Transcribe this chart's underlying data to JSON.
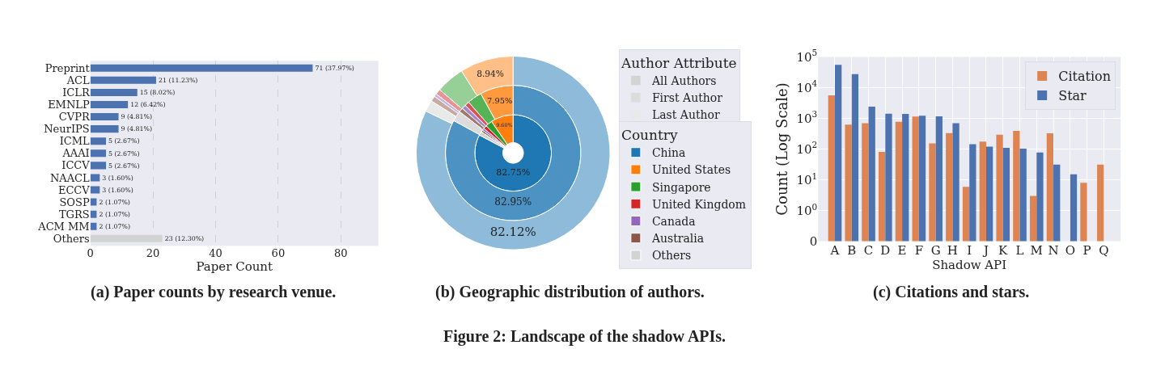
{
  "chart_data": [
    {
      "type": "bar",
      "orientation": "horizontal",
      "categories": [
        "Preprint",
        "ACL",
        "ICLR",
        "EMNLP",
        "CVPR",
        "NeurIPS",
        "ICML",
        "AAAI",
        "ICCV",
        "NAACL",
        "ECCV",
        "SOSP",
        "TGRS",
        "ACM MM",
        "Others"
      ],
      "values": [
        71,
        21,
        15,
        12,
        9,
        9,
        5,
        5,
        5,
        3,
        3,
        2,
        2,
        2,
        23
      ],
      "colors": [
        "#4c72b0",
        "#4c72b0",
        "#4c72b0",
        "#4c72b0",
        "#4c72b0",
        "#4c72b0",
        "#4c72b0",
        "#4c72b0",
        "#4c72b0",
        "#4c72b0",
        "#4c72b0",
        "#4c72b0",
        "#4c72b0",
        "#4c72b0",
        "#d3d3d3"
      ],
      "value_labels": [
        "71 (37.97%)",
        "21 (11.23%)",
        "15 (8.02%)",
        "12 (6.42%)",
        "9 (4.81%)",
        "9 (4.81%)",
        "5 (2.67%)",
        "5 (2.67%)",
        "5 (2.67%)",
        "3 (1.60%)",
        "3 (1.60%)",
        "2 (1.07%)",
        "2 (1.07%)",
        "2 (1.07%)",
        "23 (12.30%)"
      ],
      "xlabel": "Paper Count",
      "xlim": [
        0,
        92
      ],
      "xticks": [
        0,
        20,
        40,
        60,
        80
      ],
      "grid": "x",
      "annotations": [
        "(a) Paper counts by research venue."
      ]
    },
    {
      "type": "donut",
      "categories": [
        "China",
        "United States",
        "Singapore",
        "United Kingdom",
        "Canada",
        "Australia",
        "Others"
      ],
      "series": [
        {
          "name": "All Authors",
          "colors": [
            "#1f77b4",
            "#ff7f0e",
            "#2ca02c",
            "#d62728",
            "#9467bd",
            "#8c564b",
            "#d3d3d3"
          ],
          "values": [
            82.75,
            9.6,
            2.85,
            1.5,
            0.9,
            0.8,
            1.6
          ],
          "value_labels": [
            "82.75%",
            "9.60%",
            null,
            null,
            null,
            null,
            null
          ]
        },
        {
          "name": "First Author",
          "colors": [
            "#4c92c3",
            "#ff993e",
            "#56b356",
            "#de5253",
            "#a985ca",
            "#a3786f",
            "#dcdcdc"
          ],
          "values": [
            82.95,
            7.95,
            3.5,
            1.1,
            1.0,
            1.0,
            2.5
          ],
          "value_labels": [
            "82.95%",
            "7.95%",
            null,
            null,
            null,
            null,
            null
          ]
        },
        {
          "name": "Last Author",
          "colors": [
            "#8fbbda",
            "#ffbf87",
            "#96d096",
            "#eb9394",
            "#cab3de",
            "#c6aba5",
            "#e9e9e9"
          ],
          "values": [
            82.12,
            8.94,
            4.74,
            0.9,
            0.5,
            0.9,
            1.9
          ],
          "value_labels": [
            "82.12%",
            "8.94%",
            null,
            null,
            null,
            null,
            null
          ]
        }
      ],
      "legend": "right",
      "legend_title": [
        "Author Attribute",
        "Country"
      ],
      "annotations": [
        "(b) Geographic distribution of authors.",
        "Figure 2: Landscape of the shadow APIs."
      ]
    },
    {
      "type": "bar",
      "categories": [
        "A",
        "B",
        "C",
        "D",
        "E",
        "F",
        "G",
        "H",
        "I",
        "J",
        "K",
        "L",
        "M",
        "N",
        "O",
        "P",
        "Q"
      ],
      "series": [
        {
          "name": "Citation",
          "color": "#dd8452",
          "values": [
            5600,
            630,
            700,
            81,
            770,
            1150,
            153,
            330,
            5.9,
            176,
            295,
            390,
            3,
            324,
            null,
            8,
            31
          ]
        },
        {
          "name": "Star",
          "color": "#4c72b0",
          "values": [
            55000,
            27500,
            2400,
            1420,
            1400,
            1220,
            1170,
            690,
            144,
            120,
            110,
            103,
            77,
            31,
            15,
            null,
            null
          ]
        }
      ],
      "xlabel": "Shadow API",
      "ylabel": "Count (Log Scale)",
      "log": "y",
      "ylim": [
        0,
        100000
      ],
      "yticks": [
        {
          "value": 0,
          "label": "0"
        },
        {
          "value": 1,
          "label": "10$^{0}$"
        },
        {
          "value": 10,
          "label": "10$^{1}$"
        },
        {
          "value": 100,
          "label": "10$^{2}$"
        },
        {
          "value": 1000,
          "label": "10$^{3}$"
        },
        {
          "value": 10000,
          "label": "10$^{4}$"
        },
        {
          "value": 100000,
          "label": "10$^{5}$"
        }
      ],
      "grid": true,
      "legend": "top right",
      "annotations": [
        "(c) Citations and stars."
      ]
    }
  ]
}
